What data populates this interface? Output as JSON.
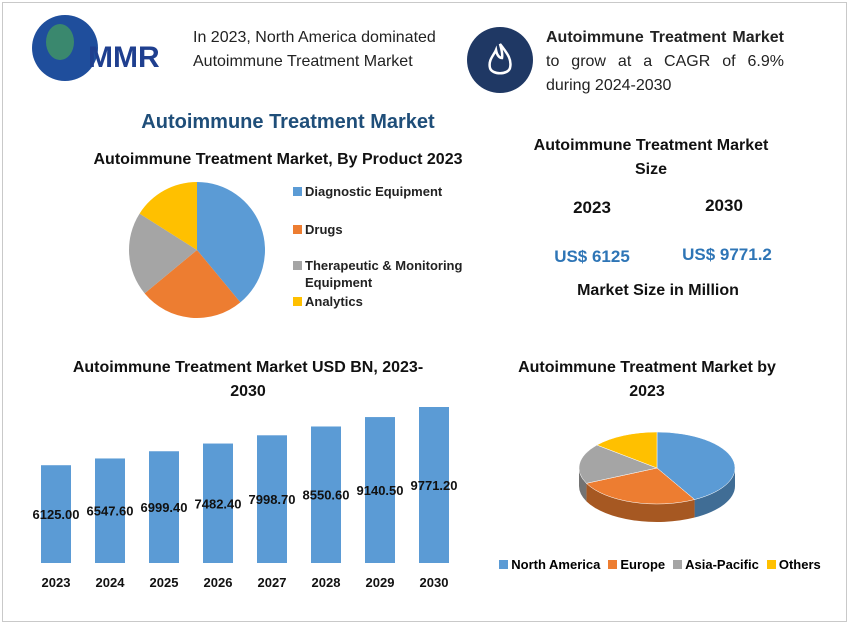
{
  "header": {
    "logo": "MMR",
    "note": "In 2023, North America dominated Autoimmune Treatment Market",
    "cagr_bold": "Autoimmune Treatment Market",
    "cagr_rest": "to grow at a CAGR of 6.9% during 2024-2030"
  },
  "title": "Autoimmune Treatment Market",
  "market_size": {
    "title": "Autoimmune Treatment Market Size",
    "years": [
      "2023",
      "2030"
    ],
    "values": [
      "US$ 6125",
      "US$ 9771.2"
    ],
    "footer": "Market Size in Million"
  },
  "chart_data": [
    {
      "type": "pie",
      "title": "Autoimmune Treatment Market, By Product 2023",
      "categories": [
        "Diagnostic Equipment",
        "Drugs",
        "Therapeutic & Monitoring Equipment",
        "Analytics"
      ],
      "values": [
        39,
        25,
        20,
        16
      ],
      "colors": [
        "#5b9bd5",
        "#ed7d31",
        "#a5a5a5",
        "#ffc000"
      ]
    },
    {
      "type": "bar",
      "title": "Autoimmune Treatment Market USD BN, 2023-2030",
      "categories": [
        "2023",
        "2024",
        "2025",
        "2026",
        "2027",
        "2028",
        "2029",
        "2030"
      ],
      "values": [
        6125,
        6547.6,
        6999.4,
        7482.4,
        7998.7,
        8550.6,
        9140.5,
        9771.2
      ],
      "value_labels": [
        "6125.00",
        "6547.60",
        "6999.40",
        "7482.40",
        "7998.70",
        "8550.60",
        "9140.50",
        "9771.20"
      ],
      "color": "#5b9bd5"
    },
    {
      "type": "pie3d",
      "title": "Autoimmune Treatment Market by 2023",
      "categories": [
        "North America",
        "Europe",
        "Asia-Pacific",
        "Others"
      ],
      "values": [
        42,
        26,
        18,
        14
      ],
      "colors": [
        "#5b9bd5",
        "#ed7d31",
        "#a5a5a5",
        "#ffc000"
      ]
    }
  ]
}
